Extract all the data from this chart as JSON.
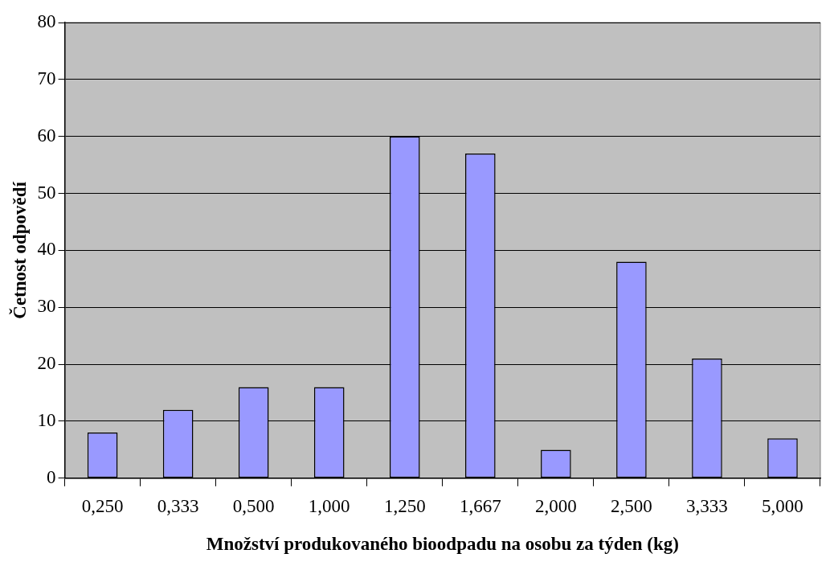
{
  "chart_data": {
    "type": "bar",
    "xlabel": "Množství produkovaného bioodpadu na osobu za týden (kg)",
    "ylabel": "Četnost odpovědí",
    "categories": [
      "0,250",
      "0,333",
      "0,500",
      "1,000",
      "1,250",
      "1,667",
      "2,000",
      "2,500",
      "3,333",
      "5,000"
    ],
    "values": [
      8,
      12,
      16,
      16,
      60,
      57,
      5,
      38,
      21,
      7
    ],
    "color": "#9999ff",
    "ylim": [
      0,
      80
    ],
    "yticks": [
      0,
      10,
      20,
      30,
      40,
      50,
      60,
      70,
      80
    ],
    "grid": "y",
    "legend": false
  }
}
